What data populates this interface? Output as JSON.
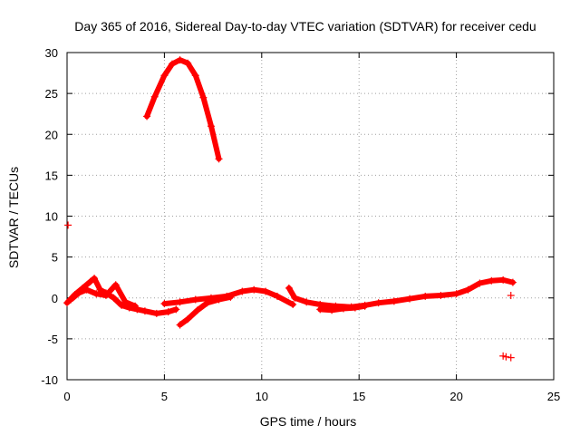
{
  "chart_data": {
    "type": "scatter",
    "title": "Day 365 of 2016, Sidereal Day-to-day VTEC variation (SDTVAR) for receiver cedu",
    "xlabel": "GPS time / hours",
    "ylabel": "SDTVAR / TECUs",
    "xlim": [
      0,
      25
    ],
    "ylim": [
      -10,
      30
    ],
    "xticks": [
      0,
      5,
      10,
      15,
      20,
      25
    ],
    "yticks": [
      -10,
      -5,
      0,
      5,
      10,
      15,
      20,
      25,
      30
    ],
    "xtick_labels": [
      "0",
      "5",
      "10",
      "15",
      "20",
      "25"
    ],
    "ytick_labels": [
      "-10",
      "-5",
      "0",
      "5",
      "10",
      "15",
      "20",
      "25",
      "30"
    ],
    "grid": true,
    "marker": "+",
    "color": "#ff0000",
    "series": [
      {
        "name": "arc-high",
        "x": [
          4.1,
          4.5,
          5.0,
          5.4,
          5.8,
          6.2,
          6.6,
          7.0,
          7.4,
          7.8
        ],
        "y": [
          22.2,
          24.6,
          27.2,
          28.6,
          29.1,
          28.7,
          27.2,
          24.5,
          21.0,
          17.0
        ]
      },
      {
        "name": "arc-low-a",
        "x": [
          0.0,
          0.4,
          0.8,
          1.2,
          1.4,
          1.7,
          2.0,
          2.4,
          2.8,
          3.2,
          3.6,
          4.0,
          4.6,
          5.2,
          5.6
        ],
        "y": [
          -0.6,
          0.4,
          1.2,
          2.0,
          2.4,
          1.0,
          0.6,
          0.0,
          -0.9,
          -1.2,
          -1.4,
          -1.6,
          -1.9,
          -1.7,
          -1.4
        ]
      },
      {
        "name": "arc-low-b",
        "x": [
          0.2,
          0.6,
          1.0,
          1.5,
          2.0,
          2.5,
          3.0,
          3.5
        ],
        "y": [
          -0.2,
          0.6,
          1.0,
          0.5,
          0.3,
          1.6,
          -0.5,
          -1.0
        ]
      },
      {
        "name": "arc-low-c",
        "x": [
          5.0,
          5.8,
          6.6,
          7.4,
          8.2,
          9.0,
          9.6,
          10.2,
          10.8,
          11.6
        ],
        "y": [
          -0.7,
          -0.5,
          -0.2,
          0.0,
          0.2,
          0.8,
          1.0,
          0.8,
          0.2,
          -0.8
        ]
      },
      {
        "name": "arc-low-d",
        "x": [
          5.8,
          6.2,
          6.7,
          7.2,
          7.8,
          8.4
        ],
        "y": [
          -3.3,
          -2.6,
          -1.5,
          -0.6,
          -0.2,
          0.1
        ]
      },
      {
        "name": "arc-low-e",
        "x": [
          11.4,
          11.7,
          12.3,
          13.0,
          13.8,
          14.6,
          15.3,
          16.0,
          16.8,
          17.6,
          18.4,
          19.2,
          20.0,
          20.6,
          21.2,
          21.8,
          22.4,
          22.9
        ],
        "y": [
          1.2,
          0.0,
          -0.5,
          -0.8,
          -1.0,
          -1.1,
          -0.9,
          -0.6,
          -0.4,
          -0.1,
          0.2,
          0.3,
          0.5,
          1.0,
          1.8,
          2.1,
          2.2,
          1.9
        ]
      },
      {
        "name": "arc-low-f",
        "x": [
          13.0,
          13.6,
          14.2,
          14.8,
          15.3
        ],
        "y": [
          -1.4,
          -1.5,
          -1.3,
          -1.2,
          -1.0
        ]
      },
      {
        "name": "isolated",
        "x": [
          0.05,
          22.4,
          22.8,
          22.8,
          22.55
        ],
        "y": [
          8.9,
          -7.1,
          -7.3,
          0.3,
          -7.2
        ]
      }
    ]
  }
}
